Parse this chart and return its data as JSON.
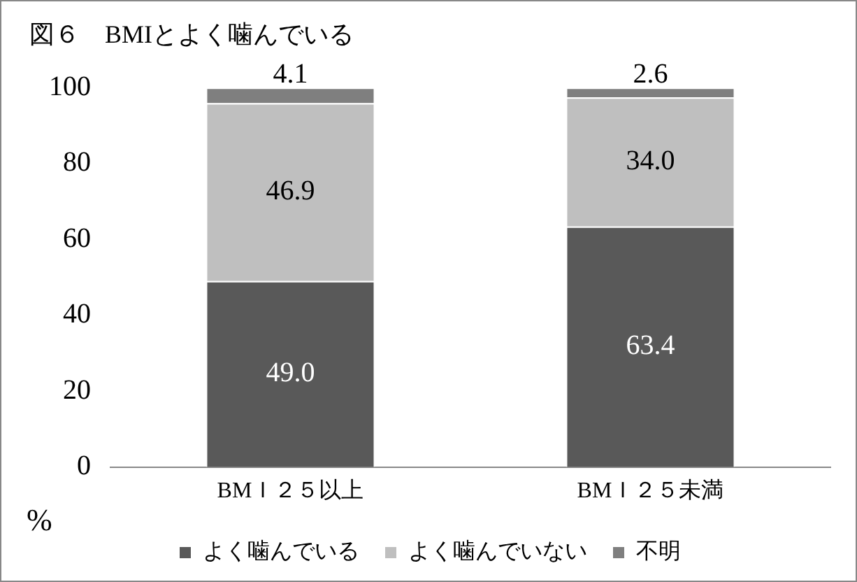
{
  "chart_data": {
    "type": "bar",
    "title": "図６　BMIとよく噛んでいる",
    "ylabel": "%",
    "stacked": true,
    "categories": [
      "BMＩ２５以上",
      "BMＩ２５未満"
    ],
    "series": [
      {
        "name": "よく噛んでいる",
        "color": "#595959",
        "values": [
          49.0,
          63.4
        ],
        "value_labels": [
          "49.0",
          "63.4"
        ]
      },
      {
        "name": "よく噛んでいない",
        "color": "#bfbfbf",
        "values": [
          46.9,
          34.0
        ],
        "value_labels": [
          "46.9",
          "34.0"
        ]
      },
      {
        "name": "不明",
        "color": "#7f7f7f",
        "values": [
          4.1,
          2.6
        ],
        "value_labels": [
          "4.1",
          "2.6"
        ]
      }
    ],
    "ylim": [
      0,
      100
    ],
    "yticks": [
      0,
      20,
      40,
      60,
      80,
      100
    ],
    "grid": false,
    "legend": "bottom"
  }
}
